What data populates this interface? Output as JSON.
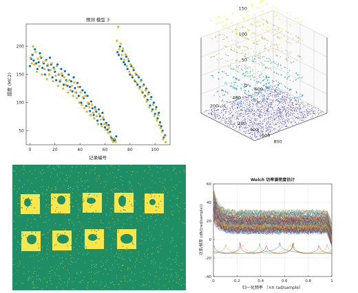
{
  "figure_grid": {
    "panels": [
      "scatter-prediction",
      "3d-scatter",
      "binary-image",
      "welch-psd"
    ]
  },
  "chart_data": [
    {
      "type": "scatter",
      "title": "预测 模型 3",
      "xlabel": "记录编号",
      "ylabel": "甜度 (MC2)",
      "xlim": [
        -3,
        112
      ],
      "ylim": [
        25,
        240
      ],
      "xticks": [
        0,
        20,
        40,
        60,
        80,
        100
      ],
      "yticks": [
        50,
        100,
        150,
        200
      ],
      "grid": false,
      "series": [
        {
          "color": "#0072BD",
          "x": [
            0,
            1,
            2,
            3,
            4,
            5,
            6,
            7,
            8,
            9,
            10,
            11,
            12,
            13,
            14,
            15,
            16,
            17,
            18,
            19,
            20,
            21,
            22,
            23,
            24,
            25,
            26,
            27,
            28,
            29,
            30,
            31,
            32,
            33,
            34,
            35,
            36,
            37,
            38,
            39,
            40,
            41,
            42,
            43,
            44,
            45,
            46,
            47,
            48,
            49,
            50,
            51,
            52,
            53,
            54,
            55,
            56,
            57,
            58,
            59,
            60,
            61,
            62,
            63,
            64,
            65,
            66,
            67,
            68,
            69,
            70,
            71,
            72,
            73,
            74,
            75,
            76,
            77,
            78,
            79,
            80,
            81,
            82,
            83,
            84,
            85,
            86,
            87,
            88,
            89,
            90,
            91,
            92,
            93,
            94,
            95,
            96,
            97,
            98,
            99,
            100,
            101,
            102,
            103,
            104,
            105,
            106,
            107,
            108
          ],
          "y": [
            165,
            178,
            185,
            175,
            195,
            170,
            160,
            172,
            188,
            180,
            162,
            170,
            150,
            176,
            166,
            158,
            180,
            168,
            145,
            162,
            155,
            140,
            168,
            150,
            138,
            160,
            148,
            132,
            156,
            140,
            130,
            150,
            128,
            138,
            120,
            145,
            126,
            118,
            135,
            112,
            128,
            100,
            122,
            108,
            118,
            94,
            112,
            98,
            85,
            102,
            90,
            78,
            92,
            84,
            68,
            88,
            76,
            62,
            82,
            70,
            56,
            64,
            52,
            60,
            48,
            38,
            35,
            32,
            34,
            40,
            190,
            185,
            200,
            178,
            192,
            172,
            168,
            182,
            160,
            174,
            150,
            165,
            145,
            158,
            138,
            150,
            132,
            145,
            128,
            140,
            118,
            132,
            112,
            125,
            105,
            118,
            95,
            110,
            88,
            100,
            80,
            92,
            72,
            82,
            65,
            58,
            50,
            38,
            42
          ]
        },
        {
          "color": "#EDB120",
          "x": [
            0.5,
            1.5,
            2.5,
            3.5,
            4.5,
            5.5,
            6.5,
            7.5,
            8.5,
            9.5,
            10.5,
            11.5,
            12.5,
            13.5,
            14.5,
            15.5,
            16.5,
            17.5,
            18.5,
            19.5,
            20.5,
            21.5,
            22.5,
            23.5,
            24.5,
            25.5,
            26.5,
            27.5,
            28.5,
            29.5,
            30.5,
            31.5,
            32.5,
            33.5,
            34.5,
            35.5,
            36.5,
            37.5,
            38.5,
            39.5,
            40.5,
            41.5,
            42.5,
            43.5,
            44.5,
            45.5,
            46.5,
            47.5,
            48.5,
            49.5,
            50.5,
            51.5,
            52.5,
            53.5,
            54.5,
            55.5,
            56.5,
            57.5,
            58.5,
            59.5,
            60.5,
            61.5,
            62.5,
            63.5,
            64.5,
            65.5,
            66.5,
            67.5,
            68.5,
            69.5,
            70.5,
            71.5,
            72.5,
            73.5,
            74.5,
            75.5,
            76.5,
            77.5,
            78.5,
            79.5,
            80.5,
            81.5,
            82.5,
            83.5,
            84.5,
            85.5,
            86.5,
            87.5,
            88.5,
            89.5,
            90.5,
            91.5,
            92.5,
            93.5,
            94.5,
            95.5,
            96.5,
            97.5,
            98.5,
            99.5,
            100.5,
            101.5,
            102.5,
            103.5,
            104.5,
            105.5,
            106.5,
            107.5,
            108.5
          ],
          "y": [
            180,
            170,
            200,
            168,
            190,
            155,
            178,
            165,
            182,
            150,
            172,
            160,
            175,
            142,
            168,
            150,
            158,
            170,
            138,
            160,
            148,
            165,
            130,
            150,
            140,
            152,
            125,
            145,
            132,
            138,
            118,
            140,
            122,
            130,
            112,
            136,
            118,
            108,
            128,
            100,
            118,
            96,
            110,
            90,
            112,
            84,
            100,
            92,
            78,
            96,
            82,
            72,
            88,
            76,
            62,
            80,
            70,
            58,
            74,
            62,
            52,
            60,
            46,
            55,
            40,
            34,
            30,
            36,
            30,
            210,
            235,
            195,
            205,
            185,
            196,
            176,
            186,
            165,
            178,
            155,
            168,
            148,
            162,
            140,
            152,
            135,
            148,
            125,
            138,
            120,
            130,
            110,
            122,
            102,
            115,
            92,
            106,
            85,
            96,
            76,
            88,
            68,
            78,
            60,
            55,
            48,
            35,
            40,
            30
          ]
        }
      ]
    },
    {
      "type": "scatter",
      "title": "",
      "xticks": [
        200,
        400,
        600,
        800
      ],
      "yticks": [
        200,
        400,
        600
      ],
      "zticks": [
        0,
        50,
        100,
        150
      ],
      "grid": true,
      "colormap": "parula"
    },
    {
      "type": "heatmap",
      "title": "",
      "colors": {
        "background": "#1F8E64",
        "foreground": "#F9E64B"
      },
      "rows": 2,
      "squares_per_row": [
        5,
        4
      ]
    },
    {
      "type": "line",
      "title": "Welch 功率谱密度估计",
      "xlabel": "归一化频率 （×π rad/sample）",
      "ylabel": "功率/频率 (dB/(rad/sample))",
      "xlim": [
        0,
        1
      ],
      "ylim": [
        -40,
        60
      ],
      "xticks": [
        "0",
        "0.2",
        "0.4",
        "0.6",
        "0.8",
        "1"
      ],
      "yticks": [
        "-40",
        "-20",
        "0",
        "20",
        "40",
        "60"
      ],
      "grid": true
    }
  ]
}
